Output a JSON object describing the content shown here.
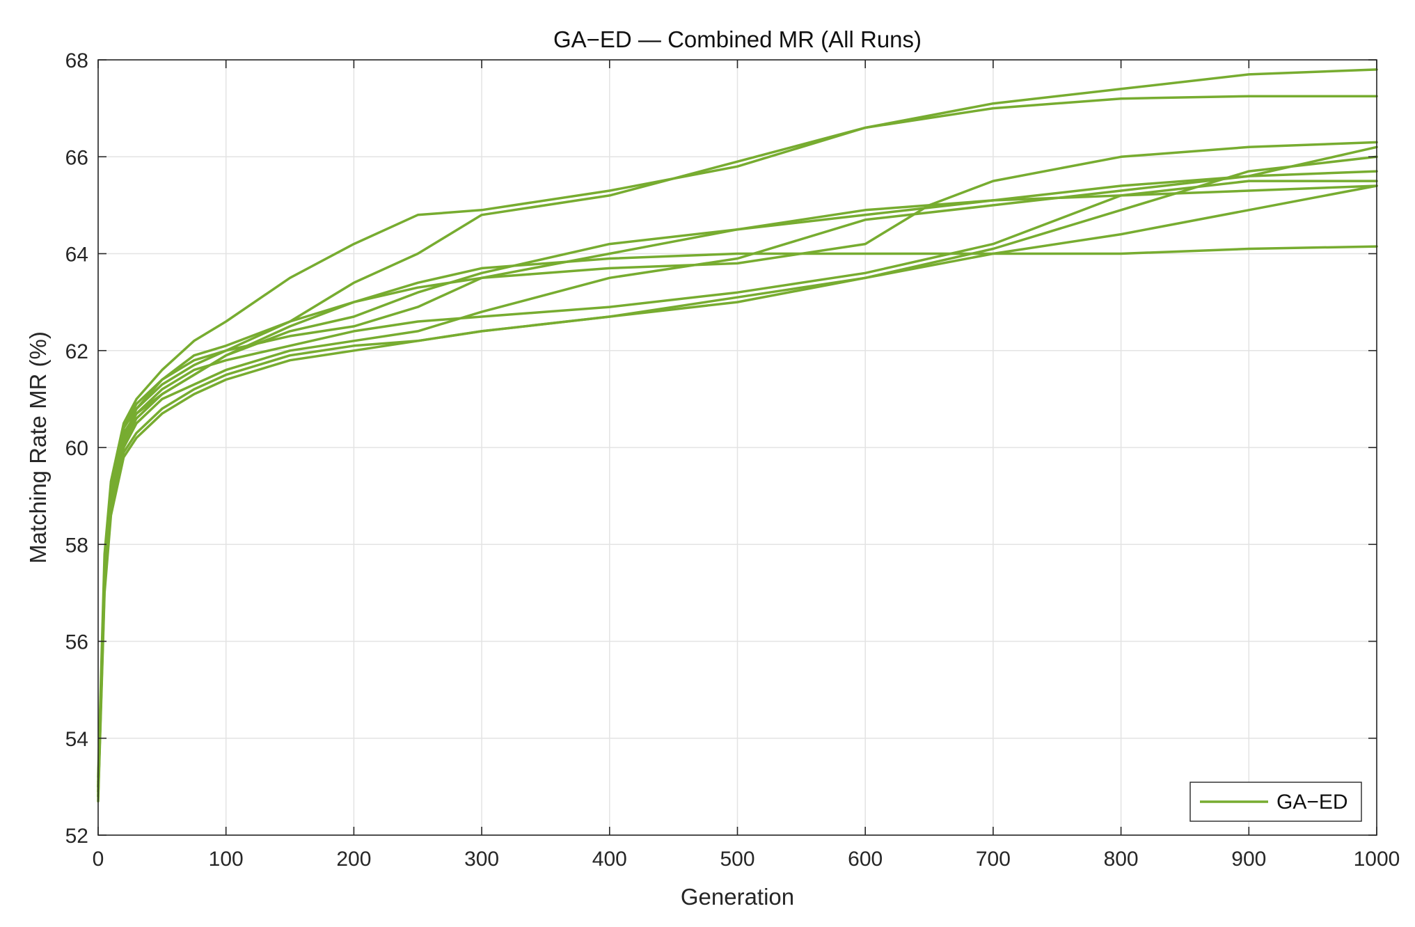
{
  "chart_data": {
    "type": "line",
    "title": "GA−ED — Combined MR (All Runs)",
    "xlabel": "Generation",
    "ylabel": "Matching Rate MR (%)",
    "xlim": [
      0,
      1000
    ],
    "ylim": [
      52,
      68
    ],
    "xticks": [
      0,
      100,
      200,
      300,
      400,
      500,
      600,
      700,
      800,
      900,
      1000
    ],
    "yticks": [
      52,
      54,
      56,
      58,
      60,
      62,
      64,
      66,
      68
    ],
    "xtick_labels": [
      "0",
      "100",
      "200",
      "300",
      "400",
      "500",
      "600",
      "700",
      "800",
      "900",
      "1000"
    ],
    "ytick_labels": [
      "52",
      "54",
      "56",
      "58",
      "60",
      "62",
      "64",
      "66",
      "68"
    ],
    "grid": true,
    "legend": {
      "position": "bottom-right",
      "entries": [
        "GA−ED"
      ]
    },
    "line_color": "#77AC30",
    "series": [
      {
        "x": [
          0,
          5,
          10,
          20,
          30,
          50,
          75,
          100,
          150,
          200,
          250,
          300,
          400,
          500,
          600,
          700,
          800,
          900,
          1000
        ],
        "values": [
          53.0,
          57.5,
          59.0,
          60.3,
          60.7,
          61.1,
          61.5,
          61.9,
          62.4,
          62.7,
          63.2,
          63.6,
          64.2,
          64.5,
          64.8,
          65.1,
          65.4,
          65.6,
          65.7
        ]
      },
      {
        "x": [
          0,
          5,
          10,
          20,
          30,
          50,
          75,
          100,
          150,
          200,
          250,
          300,
          400,
          500,
          600,
          700,
          800,
          900,
          1000
        ],
        "values": [
          53.2,
          57.8,
          59.3,
          60.5,
          61.0,
          61.6,
          62.2,
          62.6,
          63.5,
          64.2,
          64.8,
          64.9,
          65.3,
          65.8,
          66.6,
          67.1,
          67.4,
          67.7,
          67.8
        ]
      },
      {
        "x": [
          0,
          5,
          10,
          20,
          30,
          50,
          75,
          100,
          150,
          200,
          250,
          300,
          400,
          500,
          600,
          700,
          800,
          900,
          1000
        ],
        "values": [
          52.9,
          57.6,
          59.1,
          60.4,
          60.9,
          61.4,
          61.8,
          62.0,
          62.6,
          63.4,
          64.0,
          64.8,
          65.2,
          65.9,
          66.6,
          67.0,
          67.2,
          67.25,
          67.25
        ]
      },
      {
        "x": [
          0,
          5,
          10,
          20,
          30,
          50,
          75,
          100,
          150,
          200,
          250,
          300,
          400,
          500,
          600,
          650,
          700,
          800,
          900,
          1000
        ],
        "values": [
          52.8,
          57.2,
          58.9,
          60.1,
          60.6,
          61.1,
          61.5,
          61.9,
          62.5,
          63.0,
          63.4,
          63.7,
          63.9,
          64.0,
          64.0,
          64.0,
          64.0,
          64.0,
          64.1,
          64.15
        ]
      },
      {
        "x": [
          0,
          5,
          10,
          20,
          30,
          50,
          75,
          100,
          150,
          200,
          250,
          300,
          400,
          500,
          600,
          700,
          800,
          900,
          1000
        ],
        "values": [
          53.1,
          57.4,
          59.0,
          60.2,
          60.8,
          61.3,
          61.7,
          62.0,
          62.3,
          62.5,
          62.9,
          63.5,
          64.0,
          64.5,
          64.9,
          65.1,
          65.2,
          65.3,
          65.4
        ]
      },
      {
        "x": [
          0,
          5,
          10,
          20,
          30,
          50,
          75,
          100,
          150,
          200,
          250,
          300,
          400,
          500,
          600,
          700,
          800,
          900,
          1000
        ],
        "values": [
          52.9,
          57.3,
          58.8,
          60.0,
          60.5,
          61.0,
          61.3,
          61.6,
          62.0,
          62.2,
          62.4,
          62.8,
          63.5,
          63.9,
          64.7,
          65.0,
          65.3,
          65.6,
          66.2
        ]
      },
      {
        "x": [
          0,
          5,
          10,
          20,
          30,
          50,
          75,
          100,
          150,
          200,
          250,
          300,
          400,
          500,
          600,
          700,
          800,
          900,
          1000
        ],
        "values": [
          52.8,
          57.1,
          58.7,
          59.9,
          60.3,
          60.8,
          61.2,
          61.5,
          61.9,
          62.1,
          62.2,
          62.4,
          62.7,
          63.1,
          63.5,
          64.0,
          64.4,
          64.9,
          65.4
        ]
      },
      {
        "x": [
          0,
          5,
          10,
          20,
          30,
          50,
          75,
          100,
          150,
          200,
          250,
          300,
          400,
          500,
          600,
          700,
          800,
          900,
          1000
        ],
        "values": [
          53.0,
          57.5,
          59.0,
          60.2,
          60.7,
          61.2,
          61.6,
          61.8,
          62.1,
          62.4,
          62.6,
          62.7,
          62.9,
          63.2,
          63.6,
          64.2,
          65.2,
          65.5,
          65.5
        ]
      },
      {
        "x": [
          0,
          5,
          10,
          20,
          30,
          50,
          75,
          100,
          150,
          200,
          250,
          300,
          400,
          500,
          600,
          650,
          700,
          800,
          900,
          1000
        ],
        "values": [
          53.0,
          57.6,
          59.1,
          60.4,
          60.8,
          61.4,
          61.9,
          62.1,
          62.6,
          63.0,
          63.3,
          63.5,
          63.7,
          63.8,
          64.2,
          65.0,
          65.5,
          66.0,
          66.2,
          66.3
        ]
      },
      {
        "x": [
          0,
          5,
          10,
          20,
          30,
          50,
          75,
          100,
          150,
          200,
          250,
          300,
          400,
          500,
          600,
          700,
          800,
          900,
          1000
        ],
        "values": [
          52.7,
          57.0,
          58.6,
          59.8,
          60.2,
          60.7,
          61.1,
          61.4,
          61.8,
          62.0,
          62.2,
          62.4,
          62.7,
          63.0,
          63.5,
          64.1,
          64.9,
          65.7,
          66.0
        ]
      }
    ]
  }
}
